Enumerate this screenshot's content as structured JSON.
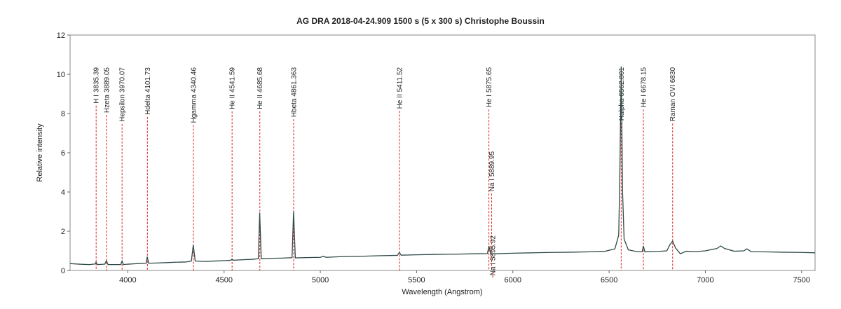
{
  "chart_data": {
    "type": "line",
    "title": "AG DRA   2018-04-24.909   1500 s (5 x 300 s)   Christophe Boussin",
    "xlabel": "Wavelength (Angstrom)",
    "ylabel": "Relative intensity",
    "xlim": [
      3700,
      7570
    ],
    "ylim": [
      0,
      12
    ],
    "xticks": [
      4000,
      4500,
      5000,
      5500,
      6000,
      6500,
      7000,
      7500
    ],
    "yticks": [
      0,
      2,
      4,
      6,
      8,
      10,
      12
    ],
    "grid": false,
    "series": [
      {
        "color": "#2f4a48",
        "x": [
          3700,
          3750,
          3800,
          3830,
          3835,
          3842,
          3880,
          3889,
          3897,
          3930,
          3963,
          3970,
          3977,
          4000,
          4050,
          4095,
          4101,
          4108,
          4150,
          4200,
          4250,
          4300,
          4330,
          4340,
          4350,
          4400,
          4450,
          4500,
          4535,
          4541,
          4548,
          4600,
          4650,
          4678,
          4685,
          4693,
          4750,
          4800,
          4853,
          4861,
          4870,
          4950,
          5000,
          5016,
          5030,
          5100,
          5200,
          5300,
          5400,
          5411,
          5420,
          5500,
          5600,
          5700,
          5800,
          5868,
          5876,
          5884,
          5900,
          6000,
          6100,
          6200,
          6300,
          6400,
          6480,
          6530,
          6550,
          6556,
          6563,
          6570,
          6578,
          6600,
          6650,
          6672,
          6678,
          6686,
          6750,
          6800,
          6815,
          6830,
          6845,
          6870,
          6900,
          6950,
          7000,
          7060,
          7080,
          7100,
          7150,
          7200,
          7215,
          7240,
          7300,
          7400,
          7500,
          7570
        ],
        "values": [
          0.35,
          0.32,
          0.3,
          0.33,
          0.42,
          0.3,
          0.32,
          0.5,
          0.3,
          0.3,
          0.3,
          0.48,
          0.3,
          0.32,
          0.35,
          0.37,
          0.7,
          0.37,
          0.38,
          0.4,
          0.42,
          0.43,
          0.48,
          1.3,
          0.48,
          0.46,
          0.48,
          0.5,
          0.52,
          0.58,
          0.52,
          0.55,
          0.57,
          0.6,
          2.95,
          0.6,
          0.62,
          0.63,
          0.65,
          3.0,
          0.64,
          0.66,
          0.67,
          0.72,
          0.67,
          0.7,
          0.72,
          0.75,
          0.77,
          0.92,
          0.78,
          0.8,
          0.82,
          0.83,
          0.85,
          0.86,
          1.25,
          0.86,
          0.85,
          0.88,
          0.9,
          0.92,
          0.93,
          0.95,
          0.98,
          1.1,
          1.8,
          5,
          10.4,
          4,
          1.6,
          1.05,
          0.95,
          0.95,
          1.25,
          0.95,
          0.97,
          1.0,
          1.3,
          1.5,
          1.15,
          0.85,
          0.98,
          0.96,
          1.0,
          1.12,
          1.25,
          1.12,
          0.98,
          1.0,
          1.1,
          0.95,
          0.95,
          0.93,
          0.92,
          0.9
        ]
      }
    ],
    "annotations": [
      {
        "label": "H I 3835.39",
        "x": 3835.39
      },
      {
        "label": "Hzeta 3889.05",
        "x": 3889.05
      },
      {
        "label": "Hepsilon 3970.07",
        "x": 3970.07
      },
      {
        "label": "Hdelta 4101.73",
        "x": 4101.73
      },
      {
        "label": "Hgamma 4340.46",
        "x": 4340.46
      },
      {
        "label": "He II 4541.59",
        "x": 4541.59
      },
      {
        "label": "He II 4685.68",
        "x": 4685.68
      },
      {
        "label": "Hbeta 4861.363",
        "x": 4861.363
      },
      {
        "label": "He II 5411.52",
        "x": 5411.52
      },
      {
        "label": "He I 5875.65",
        "x": 5875.65
      },
      {
        "label": "Na I 5889.95",
        "x": 5889.95
      },
      {
        "label": "Na I 5895.92",
        "x": 5895.92
      },
      {
        "label": "Halpha 6562.801",
        "x": 6562.801
      },
      {
        "label": "He I 6678.15",
        "x": 6678.15
      },
      {
        "label": "Raman OVI 6830",
        "x": 6830
      }
    ]
  }
}
